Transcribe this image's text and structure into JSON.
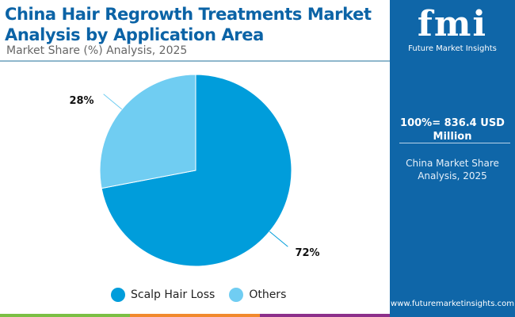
{
  "header": {
    "title": "China Hair Regrowth Treatments Market Analysis by Application Area",
    "subtitle": "Market Share (%) Analysis, 2025"
  },
  "panel": {
    "logo_text": "fmi",
    "logo_name": "Future Market Insights",
    "total": "100%= 836.4 USD Million",
    "description": "China Market Share Analysis, 2025",
    "url": "www.futuremarketinsights.com"
  },
  "colors": {
    "panel": "#0f66a8",
    "bottom_bar": [
      "#7bbf44",
      "#f1892d",
      "#8c2f8a"
    ]
  },
  "chart_data": {
    "type": "pie",
    "title": "China Hair Regrowth Treatments Market Analysis by Application Area",
    "categories": [
      "Scalp Hair Loss",
      "Others"
    ],
    "values": [
      72,
      28
    ],
    "labels": [
      "72%",
      "28%"
    ],
    "colors": [
      "#009ddb",
      "#70cdf2"
    ],
    "legend": "bottom"
  }
}
